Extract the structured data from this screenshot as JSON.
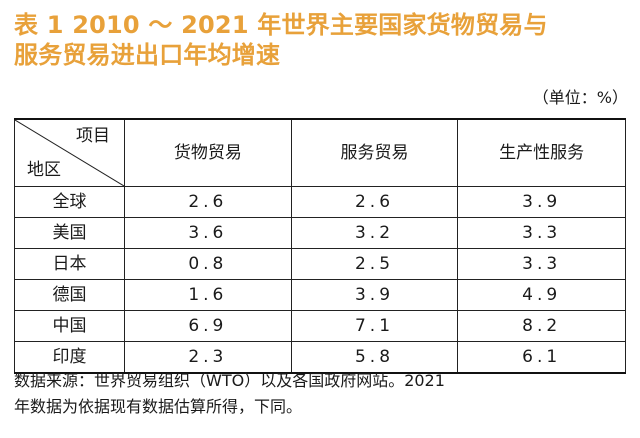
{
  "title": {
    "line1": "表 1   2010 ～ 2021 年世界主要国家货物贸易与",
    "line2": "服务贸易进出口年均增速"
  },
  "unit": "（单位：%）",
  "table": {
    "corner_top": "项目",
    "corner_bottom": "地区",
    "columns": [
      "货物贸易",
      "服务贸易",
      "生产性服务"
    ],
    "rows": [
      {
        "region": "全球",
        "values": [
          "2.6",
          "2.6",
          "3.9"
        ]
      },
      {
        "region": "美国",
        "values": [
          "3.6",
          "3.2",
          "3.3"
        ]
      },
      {
        "region": "日本",
        "values": [
          "0.8",
          "2.5",
          "3.3"
        ]
      },
      {
        "region": "德国",
        "values": [
          "1.6",
          "3.9",
          "4.9"
        ]
      },
      {
        "region": "中国",
        "values": [
          "6.9",
          "7.1",
          "8.2"
        ]
      },
      {
        "region": "印度",
        "values": [
          "2.3",
          "5.8",
          "6.1"
        ]
      }
    ]
  },
  "note": {
    "line1": "数据来源：世界贸易组织（WTO）以及各国政府网站。2021",
    "line2": "年数据为依据现有数据估算所得，下同。"
  },
  "colors": {
    "title": "#e8a13a",
    "text": "#1a1a1a",
    "rule": "#222222"
  }
}
